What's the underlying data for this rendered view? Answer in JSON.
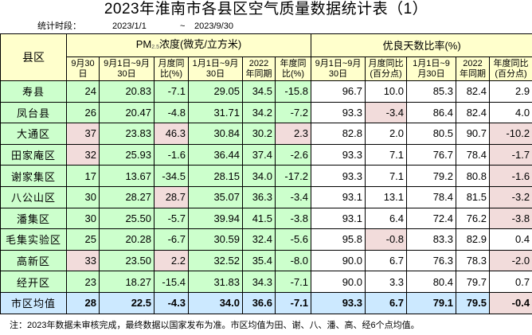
{
  "title": "2023年淮南市各县区空气质量数据统计表（1）",
  "period": {
    "label": "统计时段：",
    "start": "2023/1/1",
    "sep": "~",
    "end": "2023/9/30"
  },
  "headers": {
    "county": "县区",
    "pm25_group_prefix": "PM",
    "pm25_group_sub": "2.5",
    "pm25_group_suffix": "浓度(微克/立方米)",
    "good_group": "优良天数比率(%)",
    "pm25_cols": [
      "9月30日",
      "9月1日~9月30日",
      "月度同比(%)",
      "1月1日~9月30日",
      "2022年同期",
      "年度同比(%)"
    ],
    "good_cols": [
      "9月1日~9月30日",
      "月度同比(百分点)",
      "1月1日~9月30日",
      "2022年同期",
      "年度同比(百分点)"
    ]
  },
  "rows": [
    {
      "name": "寿县",
      "d930": "24",
      "pm_m": "20.83",
      "pm_m_yoy": "-7.1",
      "pm_y": "29.05",
      "pm_2022": "34.5",
      "pm_y_yoy": "-15.8",
      "g_m": "96.7",
      "g_m_yoy": "10.0",
      "g_y": "85.3",
      "g_2022": "82.4",
      "g_y_yoy": "2.9"
    },
    {
      "name": "凤台县",
      "d930": "26",
      "pm_m": "20.47",
      "pm_m_yoy": "-4.8",
      "pm_y": "31.71",
      "pm_2022": "34.2",
      "pm_y_yoy": "-7.2",
      "g_m": "93.3",
      "g_m_yoy": "-3.4",
      "g_y": "86.4",
      "g_2022": "82.4",
      "g_y_yoy": "4.0"
    },
    {
      "name": "大通区",
      "d930": "37",
      "pm_m": "23.83",
      "pm_m_yoy": "46.3",
      "pm_y": "30.84",
      "pm_2022": "30.2",
      "pm_y_yoy": "2.3",
      "g_m": "82.8",
      "g_m_yoy": "2.0",
      "g_y": "80.5",
      "g_2022": "90.7",
      "g_y_yoy": "-10.2"
    },
    {
      "name": "田家庵区",
      "d930": "32",
      "pm_m": "25.93",
      "pm_m_yoy": "-1.6",
      "pm_y": "36.44",
      "pm_2022": "37.4",
      "pm_y_yoy": "-2.6",
      "g_m": "93.3",
      "g_m_yoy": "7.1",
      "g_y": "76.7",
      "g_2022": "78.4",
      "g_y_yoy": "-1.7"
    },
    {
      "name": "谢家集区",
      "d930": "17",
      "pm_m": "13.67",
      "pm_m_yoy": "-34.5",
      "pm_y": "28.15",
      "pm_2022": "34.0",
      "pm_y_yoy": "-17.2",
      "g_m": "93.3",
      "g_m_yoy": "7.1",
      "g_y": "79.2",
      "g_2022": "80.8",
      "g_y_yoy": "-1.6"
    },
    {
      "name": "八公山区",
      "d930": "30",
      "pm_m": "28.27",
      "pm_m_yoy": "28.7",
      "pm_y": "35.07",
      "pm_2022": "36.3",
      "pm_y_yoy": "-3.4",
      "g_m": "93.1",
      "g_m_yoy": "13.1",
      "g_y": "78.4",
      "g_2022": "81.5",
      "g_y_yoy": "-3.2"
    },
    {
      "name": "潘集区",
      "d930": "30",
      "pm_m": "25.50",
      "pm_m_yoy": "-5.7",
      "pm_y": "39.94",
      "pm_2022": "41.5",
      "pm_y_yoy": "-3.8",
      "g_m": "93.1",
      "g_m_yoy": "6.4",
      "g_y": "72.4",
      "g_2022": "76.2",
      "g_y_yoy": "-3.8"
    },
    {
      "name": "毛集实验区",
      "d930": "25",
      "pm_m": "20.28",
      "pm_m_yoy": "-6.7",
      "pm_y": "30.59",
      "pm_2022": "32.4",
      "pm_y_yoy": "-5.6",
      "g_m": "95.8",
      "g_m_yoy": "-0.8",
      "g_y": "83.3",
      "g_2022": "82.9",
      "g_y_yoy": "0.4"
    },
    {
      "name": "高新区",
      "d930": "33",
      "pm_m": "23.50",
      "pm_m_yoy": "2.2",
      "pm_y": "32.52",
      "pm_2022": "35.4",
      "pm_y_yoy": "-8.0",
      "g_m": "90.0",
      "g_m_yoy": "6.7",
      "g_y": "76.3",
      "g_2022": "78.3",
      "g_y_yoy": "-2.0"
    },
    {
      "name": "经开区",
      "d930": "23",
      "pm_m": "18.27",
      "pm_m_yoy": "-15.4",
      "pm_y": "31.83",
      "pm_2022": "34.3",
      "pm_y_yoy": "-7.1",
      "g_m": "90.0",
      "g_m_yoy": "3.3",
      "g_y": "80.4",
      "g_2022": "79.7",
      "g_y_yoy": "0.7"
    }
  ],
  "average": {
    "name": "市区均值",
    "d930": "28",
    "pm_m": "22.5",
    "pm_m_yoy": "-4.3",
    "pm_y": "34.0",
    "pm_2022": "36.6",
    "pm_y_yoy": "-7.1",
    "g_m": "93.3",
    "g_m_yoy": "6.7",
    "g_y": "79.1",
    "g_2022": "79.5",
    "g_y_yoy": "-0.4"
  },
  "note": "注：2023年数据未审核完成，最终数据以国家发布为准。市区均值为田、谢、八、潘、高、经6个点均值。",
  "colors": {
    "header_bg": "#ffffcc",
    "pm25_cell_bg": "#ccffcc",
    "good_cell_bg": "#ffffff",
    "highlight_bg": "#f2dcdb",
    "average_bg": "#cce9ff"
  }
}
